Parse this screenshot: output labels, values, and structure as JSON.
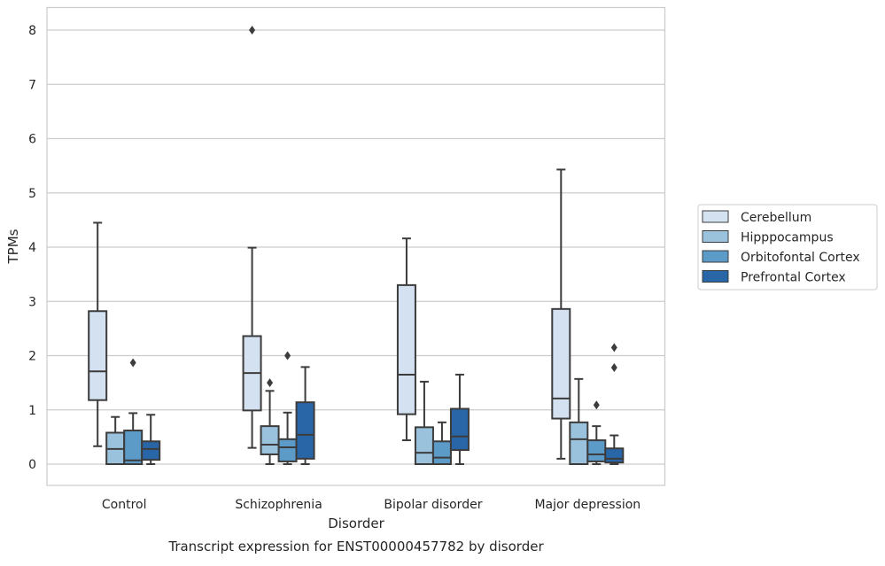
{
  "chart_data": {
    "type": "boxplot",
    "title": "Transcript expression for ENST00000457782 by disorder",
    "xlabel": "Disorder",
    "ylabel": "TPMs",
    "ylim": [
      -0.4,
      8.4
    ],
    "yticks": [
      0,
      1,
      2,
      3,
      4,
      5,
      6,
      7,
      8
    ],
    "grid": "horizontal",
    "legend_position": "right",
    "categories": [
      "Control",
      "Schizophrenia",
      "Bipolar disorder",
      "Major depression"
    ],
    "series": [
      {
        "name": "Cerebellum",
        "color": "#d3e1f0",
        "boxes": [
          {
            "whislo": 0.33,
            "q1": 1.18,
            "med": 1.71,
            "q3": 2.82,
            "whishi": 4.45,
            "fliers": []
          },
          {
            "whislo": 0.3,
            "q1": 0.99,
            "med": 1.68,
            "q3": 2.36,
            "whishi": 3.99,
            "fliers": [
              8.0
            ]
          },
          {
            "whislo": 0.44,
            "q1": 0.92,
            "med": 1.65,
            "q3": 3.3,
            "whishi": 4.16,
            "fliers": []
          },
          {
            "whislo": 0.1,
            "q1": 0.84,
            "med": 1.21,
            "q3": 2.86,
            "whishi": 5.43,
            "fliers": []
          }
        ]
      },
      {
        "name": "Hipppocampus",
        "color": "#9ac2dc",
        "boxes": [
          {
            "whislo": 0.0,
            "q1": 0.0,
            "med": 0.28,
            "q3": 0.58,
            "whishi": 0.87,
            "fliers": []
          },
          {
            "whislo": 0.0,
            "q1": 0.18,
            "med": 0.36,
            "q3": 0.7,
            "whishi": 1.35,
            "fliers": [
              1.5
            ]
          },
          {
            "whislo": 0.0,
            "q1": 0.0,
            "med": 0.21,
            "q3": 0.68,
            "whishi": 1.52,
            "fliers": []
          },
          {
            "whislo": 0.0,
            "q1": 0.0,
            "med": 0.46,
            "q3": 0.77,
            "whishi": 1.57,
            "fliers": []
          }
        ]
      },
      {
        "name": "Orbitofontal Cortex",
        "color": "#5c9ac8",
        "boxes": [
          {
            "whislo": 0.0,
            "q1": 0.0,
            "med": 0.07,
            "q3": 0.62,
            "whishi": 0.94,
            "fliers": [
              1.87
            ]
          },
          {
            "whislo": 0.0,
            "q1": 0.05,
            "med": 0.31,
            "q3": 0.46,
            "whishi": 0.95,
            "fliers": [
              2.0
            ]
          },
          {
            "whislo": 0.0,
            "q1": 0.0,
            "med": 0.12,
            "q3": 0.42,
            "whishi": 0.77,
            "fliers": []
          },
          {
            "whislo": 0.0,
            "q1": 0.05,
            "med": 0.18,
            "q3": 0.44,
            "whishi": 0.7,
            "fliers": [
              1.09
            ]
          }
        ]
      },
      {
        "name": "Prefrontal Cortex",
        "color": "#2866a8",
        "boxes": [
          {
            "whislo": 0.0,
            "q1": 0.08,
            "med": 0.28,
            "q3": 0.42,
            "whishi": 0.91,
            "fliers": []
          },
          {
            "whislo": 0.0,
            "q1": 0.1,
            "med": 0.54,
            "q3": 1.14,
            "whishi": 1.79,
            "fliers": []
          },
          {
            "whislo": 0.0,
            "q1": 0.26,
            "med": 0.51,
            "q3": 1.02,
            "whishi": 1.65,
            "fliers": []
          },
          {
            "whislo": 0.0,
            "q1": 0.03,
            "med": 0.1,
            "q3": 0.29,
            "whishi": 0.53,
            "fliers": [
              1.78,
              2.15
            ]
          }
        ]
      }
    ]
  }
}
